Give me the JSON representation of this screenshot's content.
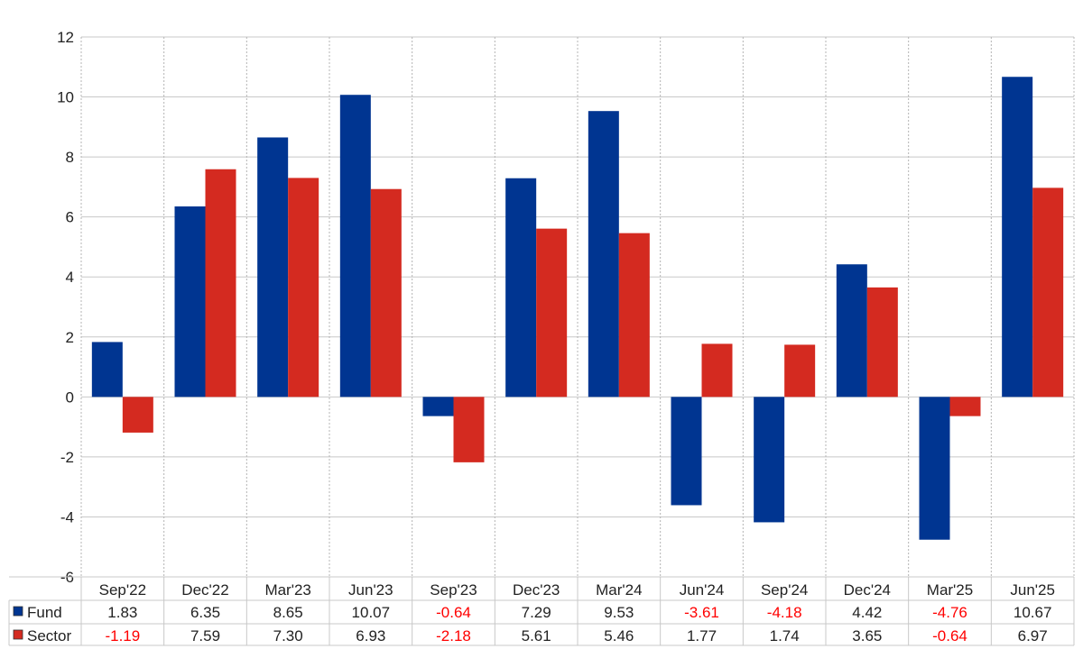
{
  "chart_data": {
    "type": "bar",
    "categories": [
      "Sep'22",
      "Dec'22",
      "Mar'23",
      "Jun'23",
      "Sep'23",
      "Dec'23",
      "Mar'24",
      "Jun'24",
      "Sep'24",
      "Dec'24",
      "Mar'25",
      "Jun'25"
    ],
    "series": [
      {
        "name": "Fund",
        "color": "#003591",
        "values": [
          1.83,
          6.35,
          8.65,
          10.07,
          -0.64,
          7.29,
          9.53,
          -3.61,
          -4.18,
          4.42,
          -4.76,
          10.67
        ],
        "labels": [
          "1.83",
          "6.35",
          "8.65",
          "10.07",
          "-0.64",
          "7.29",
          "9.53",
          "-3.61",
          "-4.18",
          "4.42",
          "-4.76",
          "10.67"
        ]
      },
      {
        "name": "Sector",
        "color": "#d42a20",
        "values": [
          -1.19,
          7.59,
          7.3,
          6.93,
          -2.18,
          5.61,
          5.46,
          1.77,
          1.74,
          3.65,
          -0.64,
          6.97
        ],
        "labels": [
          "-1.19",
          "7.59",
          "7.30",
          "6.93",
          "-2.18",
          "5.61",
          "5.46",
          "1.77",
          "1.74",
          "3.65",
          "-0.64",
          "6.97"
        ]
      }
    ],
    "ylim": [
      -6,
      12
    ],
    "yticks": [
      12,
      10,
      8,
      6,
      4,
      2,
      0,
      -2,
      -4,
      -6
    ],
    "ytick_labels": [
      "12",
      "10",
      "8",
      "6",
      "4",
      "2",
      "0",
      "-2",
      "-4",
      "-6"
    ],
    "title": "",
    "xlabel": "",
    "ylabel": "",
    "grid": true,
    "negative_value_color": "#ff0000",
    "legend": "table-below"
  }
}
